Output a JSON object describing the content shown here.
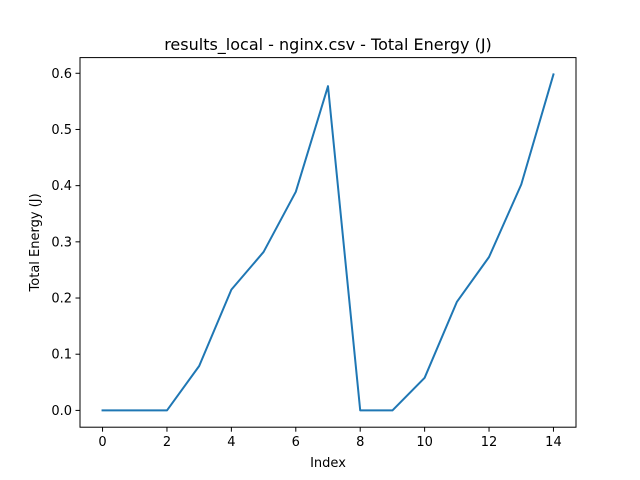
{
  "chart_data": {
    "type": "line",
    "title": "results_local - nginx.csv - Total Energy (J)",
    "xlabel": "Index",
    "ylabel": "Total Energy (J)",
    "x": [
      0,
      1,
      2,
      3,
      4,
      5,
      6,
      7,
      8,
      9,
      10,
      11,
      12,
      13,
      14
    ],
    "series": [
      {
        "color": "#1f77b4",
        "values": [
          0.0,
          0.0,
          0.0,
          0.079,
          0.215,
          0.282,
          0.389,
          0.577,
          0.0,
          0.0,
          0.058,
          0.193,
          0.273,
          0.402,
          0.598
        ]
      }
    ],
    "xlim": [
      -0.7,
      14.7
    ],
    "ylim": [
      -0.0299,
      0.6279
    ],
    "xticks": [
      0,
      2,
      4,
      6,
      8,
      10,
      12,
      14
    ],
    "xtick_labels": [
      "0",
      "2",
      "4",
      "6",
      "8",
      "10",
      "12",
      "14"
    ],
    "yticks": [
      0.0,
      0.1,
      0.2,
      0.3,
      0.4,
      0.5,
      0.6
    ],
    "ytick_labels": [
      "0.0",
      "0.1",
      "0.2",
      "0.3",
      "0.4",
      "0.5",
      "0.6"
    ],
    "grid": false,
    "legend": "none"
  }
}
